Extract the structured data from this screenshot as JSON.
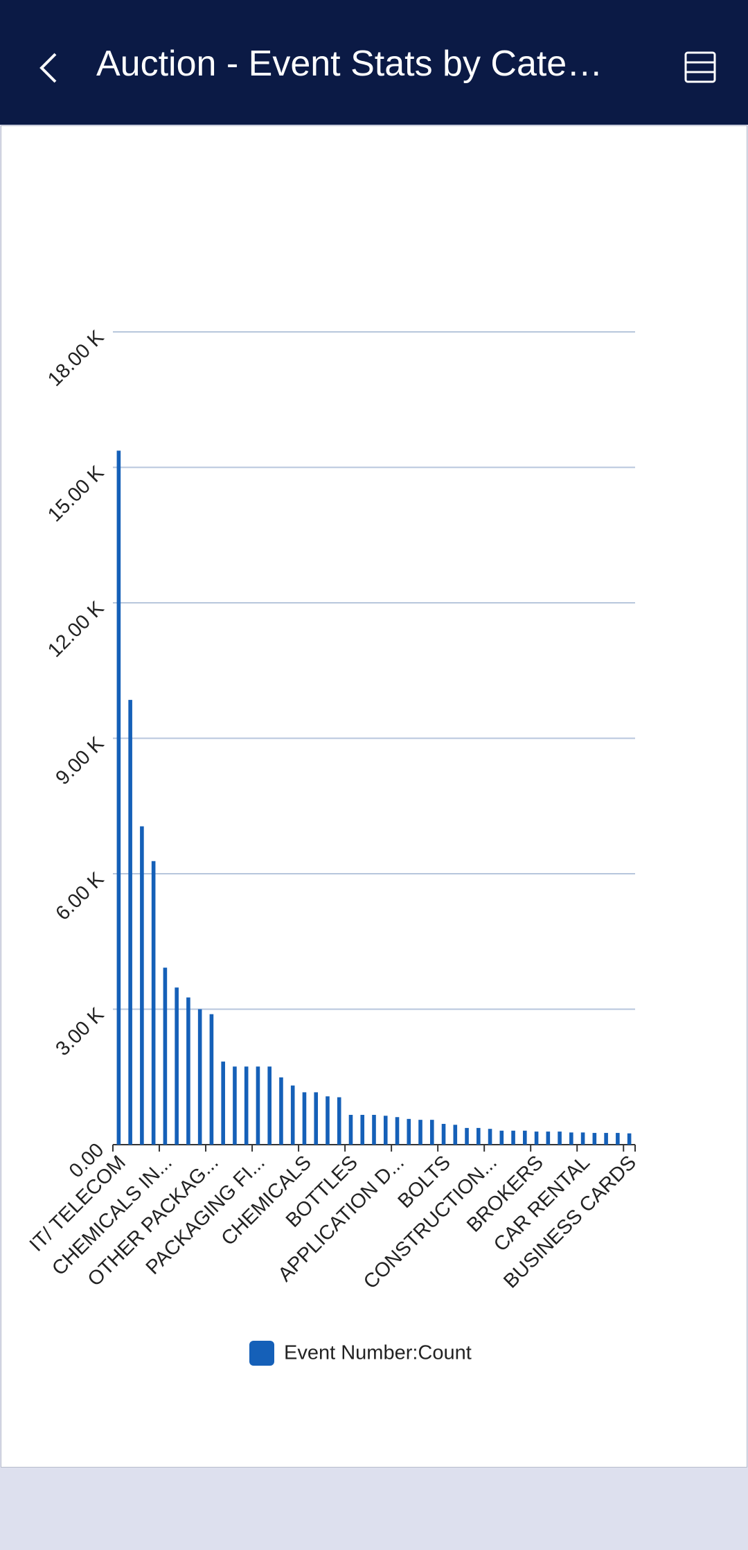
{
  "header": {
    "title": "Auction - Event Stats by Cate…"
  },
  "chart_data": {
    "type": "bar",
    "categories": [
      "IT/ TELECOM",
      null,
      null,
      null,
      "CHEMICALS IN...",
      null,
      null,
      null,
      "OTHER PACKAG...",
      null,
      null,
      null,
      "PACKAGING FI...",
      null,
      null,
      null,
      "CHEMICALS",
      null,
      null,
      null,
      "BOTTLES",
      null,
      null,
      null,
      "APPLICATION D...",
      null,
      null,
      null,
      "BOLTS",
      null,
      null,
      null,
      "CONSTRUCTION...",
      null,
      null,
      null,
      "BROKERS",
      null,
      null,
      null,
      "CAR RENTAL",
      null,
      null,
      null,
      "BUSINESS CARDS"
    ],
    "series": [
      {
        "name": "Event Number:Count",
        "color": "#1560b8",
        "values": [
          15370,
          9850,
          7050,
          6280,
          3920,
          3480,
          3260,
          3000,
          2890,
          1840,
          1730,
          1730,
          1730,
          1730,
          1490,
          1310,
          1160,
          1160,
          1070,
          1050,
          660,
          660,
          660,
          640,
          610,
          570,
          550,
          550,
          460,
          440,
          370,
          370,
          350,
          310,
          310,
          310,
          290,
          290,
          290,
          270,
          270,
          260,
          260,
          260,
          250
        ]
      }
    ],
    "ylim": [
      0,
      18000
    ],
    "yticks": [
      {
        "value": 0,
        "label": "0.00"
      },
      {
        "value": 3000,
        "label": "3.00 K"
      },
      {
        "value": 6000,
        "label": "6.00 K"
      },
      {
        "value": 9000,
        "label": "9.00 K"
      },
      {
        "value": 12000,
        "label": "12.00 K"
      },
      {
        "value": 15000,
        "label": "15.00 K"
      },
      {
        "value": 18000,
        "label": "18.00 K"
      }
    ],
    "grid": true
  }
}
